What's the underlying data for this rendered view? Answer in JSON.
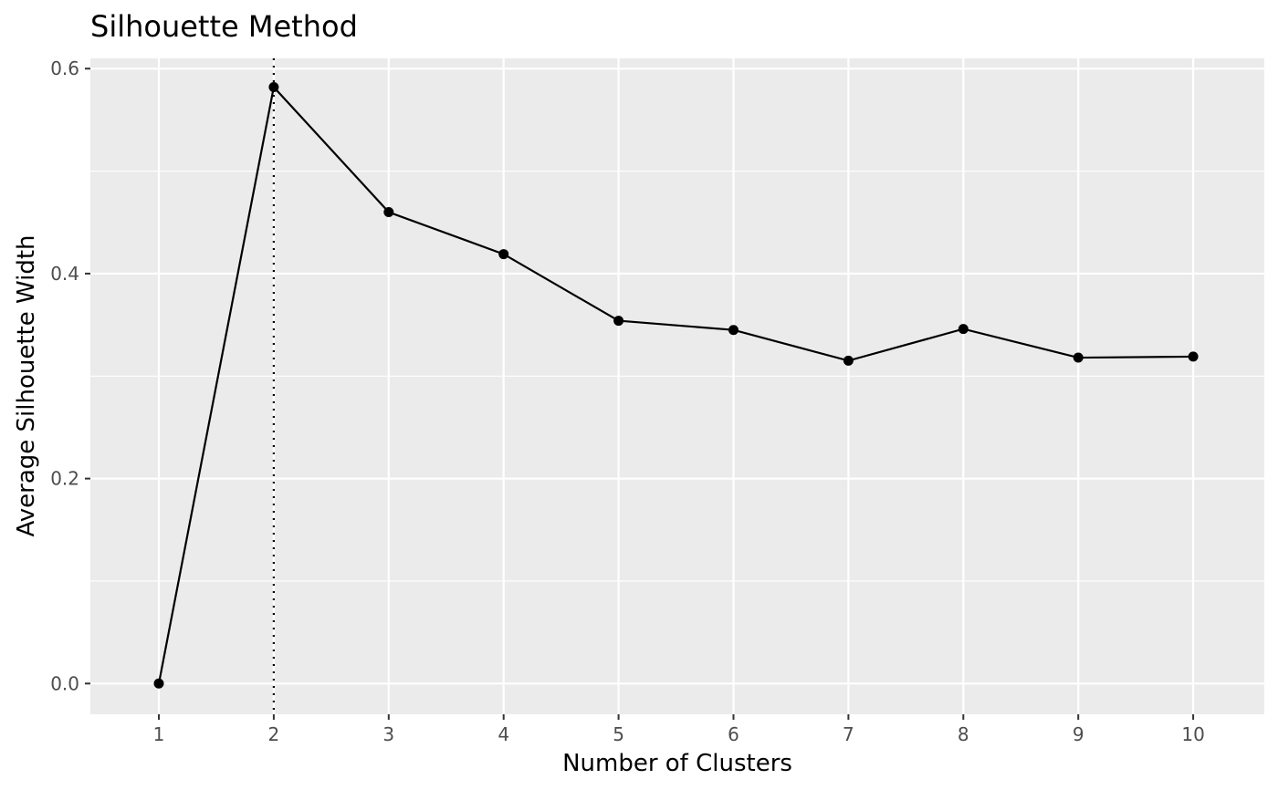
{
  "chart_data": {
    "type": "line",
    "title": "Silhouette Method",
    "xlabel": "Number of Clusters",
    "ylabel": "Average Silhouette Width",
    "x": [
      "1",
      "2",
      "3",
      "4",
      "5",
      "6",
      "7",
      "8",
      "9",
      "10"
    ],
    "series": [
      {
        "values": [
          0.0,
          0.582,
          0.46,
          0.419,
          0.354,
          0.345,
          0.315,
          0.346,
          0.318,
          0.319
        ]
      }
    ],
    "ylim": [
      -0.03,
      0.61
    ],
    "yticks": [
      0.0,
      0.2,
      0.4,
      0.6
    ],
    "ytick_labels": [
      "0.0",
      "0.2",
      "0.4",
      "0.6"
    ],
    "optimal_k": "2",
    "reference_line": {
      "orientation": "vertical",
      "at": "2",
      "style": "dotted"
    },
    "grid": true,
    "panel_background": "#ebebeb",
    "grid_color": "#ffffff",
    "line_color": "#000000",
    "point_color": "#000000"
  }
}
